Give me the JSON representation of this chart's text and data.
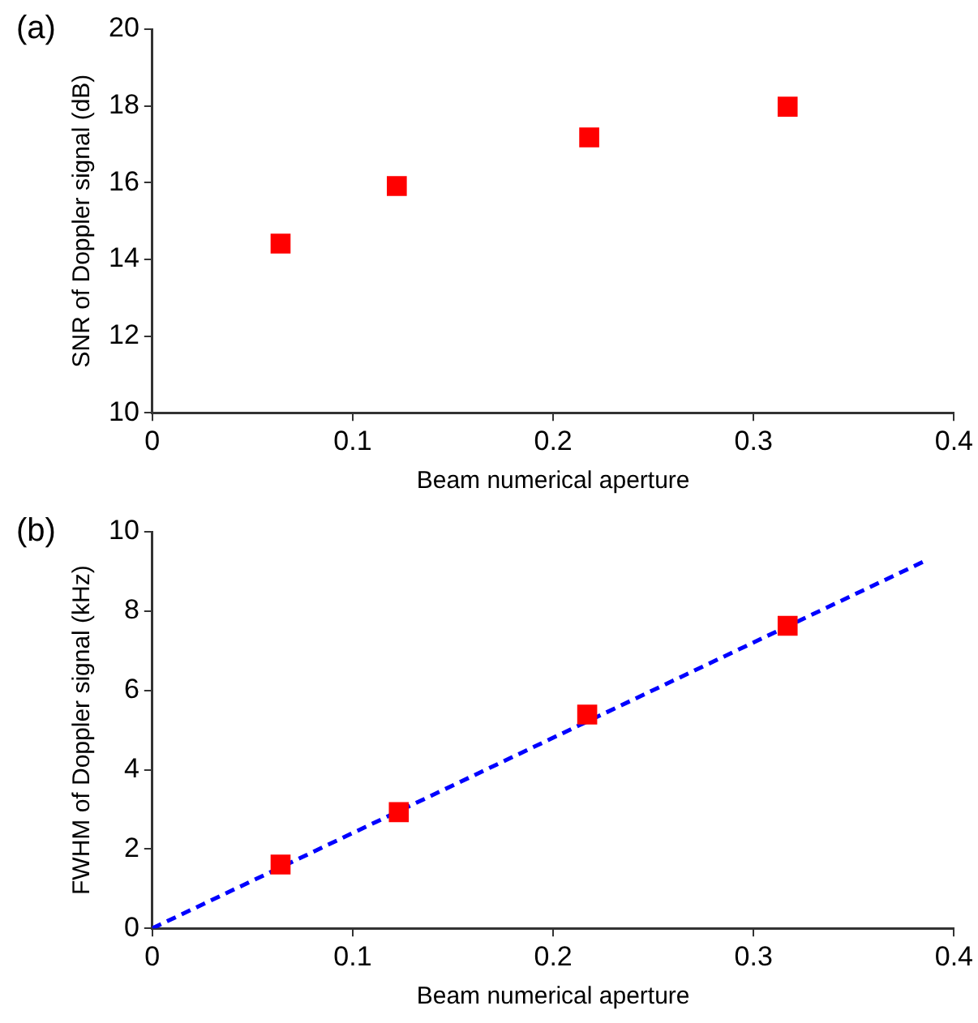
{
  "chart_data": [
    {
      "type": "scatter",
      "annotations": [
        "(a)"
      ],
      "xlabel": "Beam numerical aperture",
      "ylabel": "SNR of Doppler signal (dB)",
      "xlim": [
        0,
        0.4
      ],
      "xticks": [
        0,
        0.1,
        0.2,
        0.3,
        0.4
      ],
      "ylim": [
        10,
        20
      ],
      "yticks": [
        10,
        12,
        14,
        16,
        18,
        20
      ],
      "grid": false,
      "legend": false,
      "marker": "square",
      "series": [
        {
          "type": "scatter",
          "color": "#ff0000",
          "x": [
            0.064,
            0.122,
            0.218,
            0.317
          ],
          "values": [
            14.41,
            15.91,
            17.18,
            17.98
          ]
        }
      ]
    },
    {
      "type": "scatter",
      "annotations": [
        "(b)"
      ],
      "xlabel": "Beam numerical aperture",
      "ylabel": "FWHM of Doppler signal (kHz)",
      "xlim": [
        0,
        0.4
      ],
      "xticks": [
        0,
        0.1,
        0.2,
        0.3,
        0.4
      ],
      "ylim": [
        0,
        10
      ],
      "yticks": [
        0,
        2,
        4,
        6,
        8,
        10
      ],
      "grid": false,
      "legend": false,
      "marker": "square",
      "series": [
        {
          "type": "scatter",
          "color": "#ff0000",
          "x": [
            0.064,
            0.123,
            0.217,
            0.317
          ],
          "values": [
            1.61,
            2.93,
            5.39,
            7.63
          ]
        },
        {
          "type": "line",
          "color": "#0000ff",
          "line_style": "dashed",
          "marker": "none",
          "x": [
            0,
            0.387
          ],
          "values": [
            0,
            9.3
          ]
        }
      ]
    }
  ]
}
